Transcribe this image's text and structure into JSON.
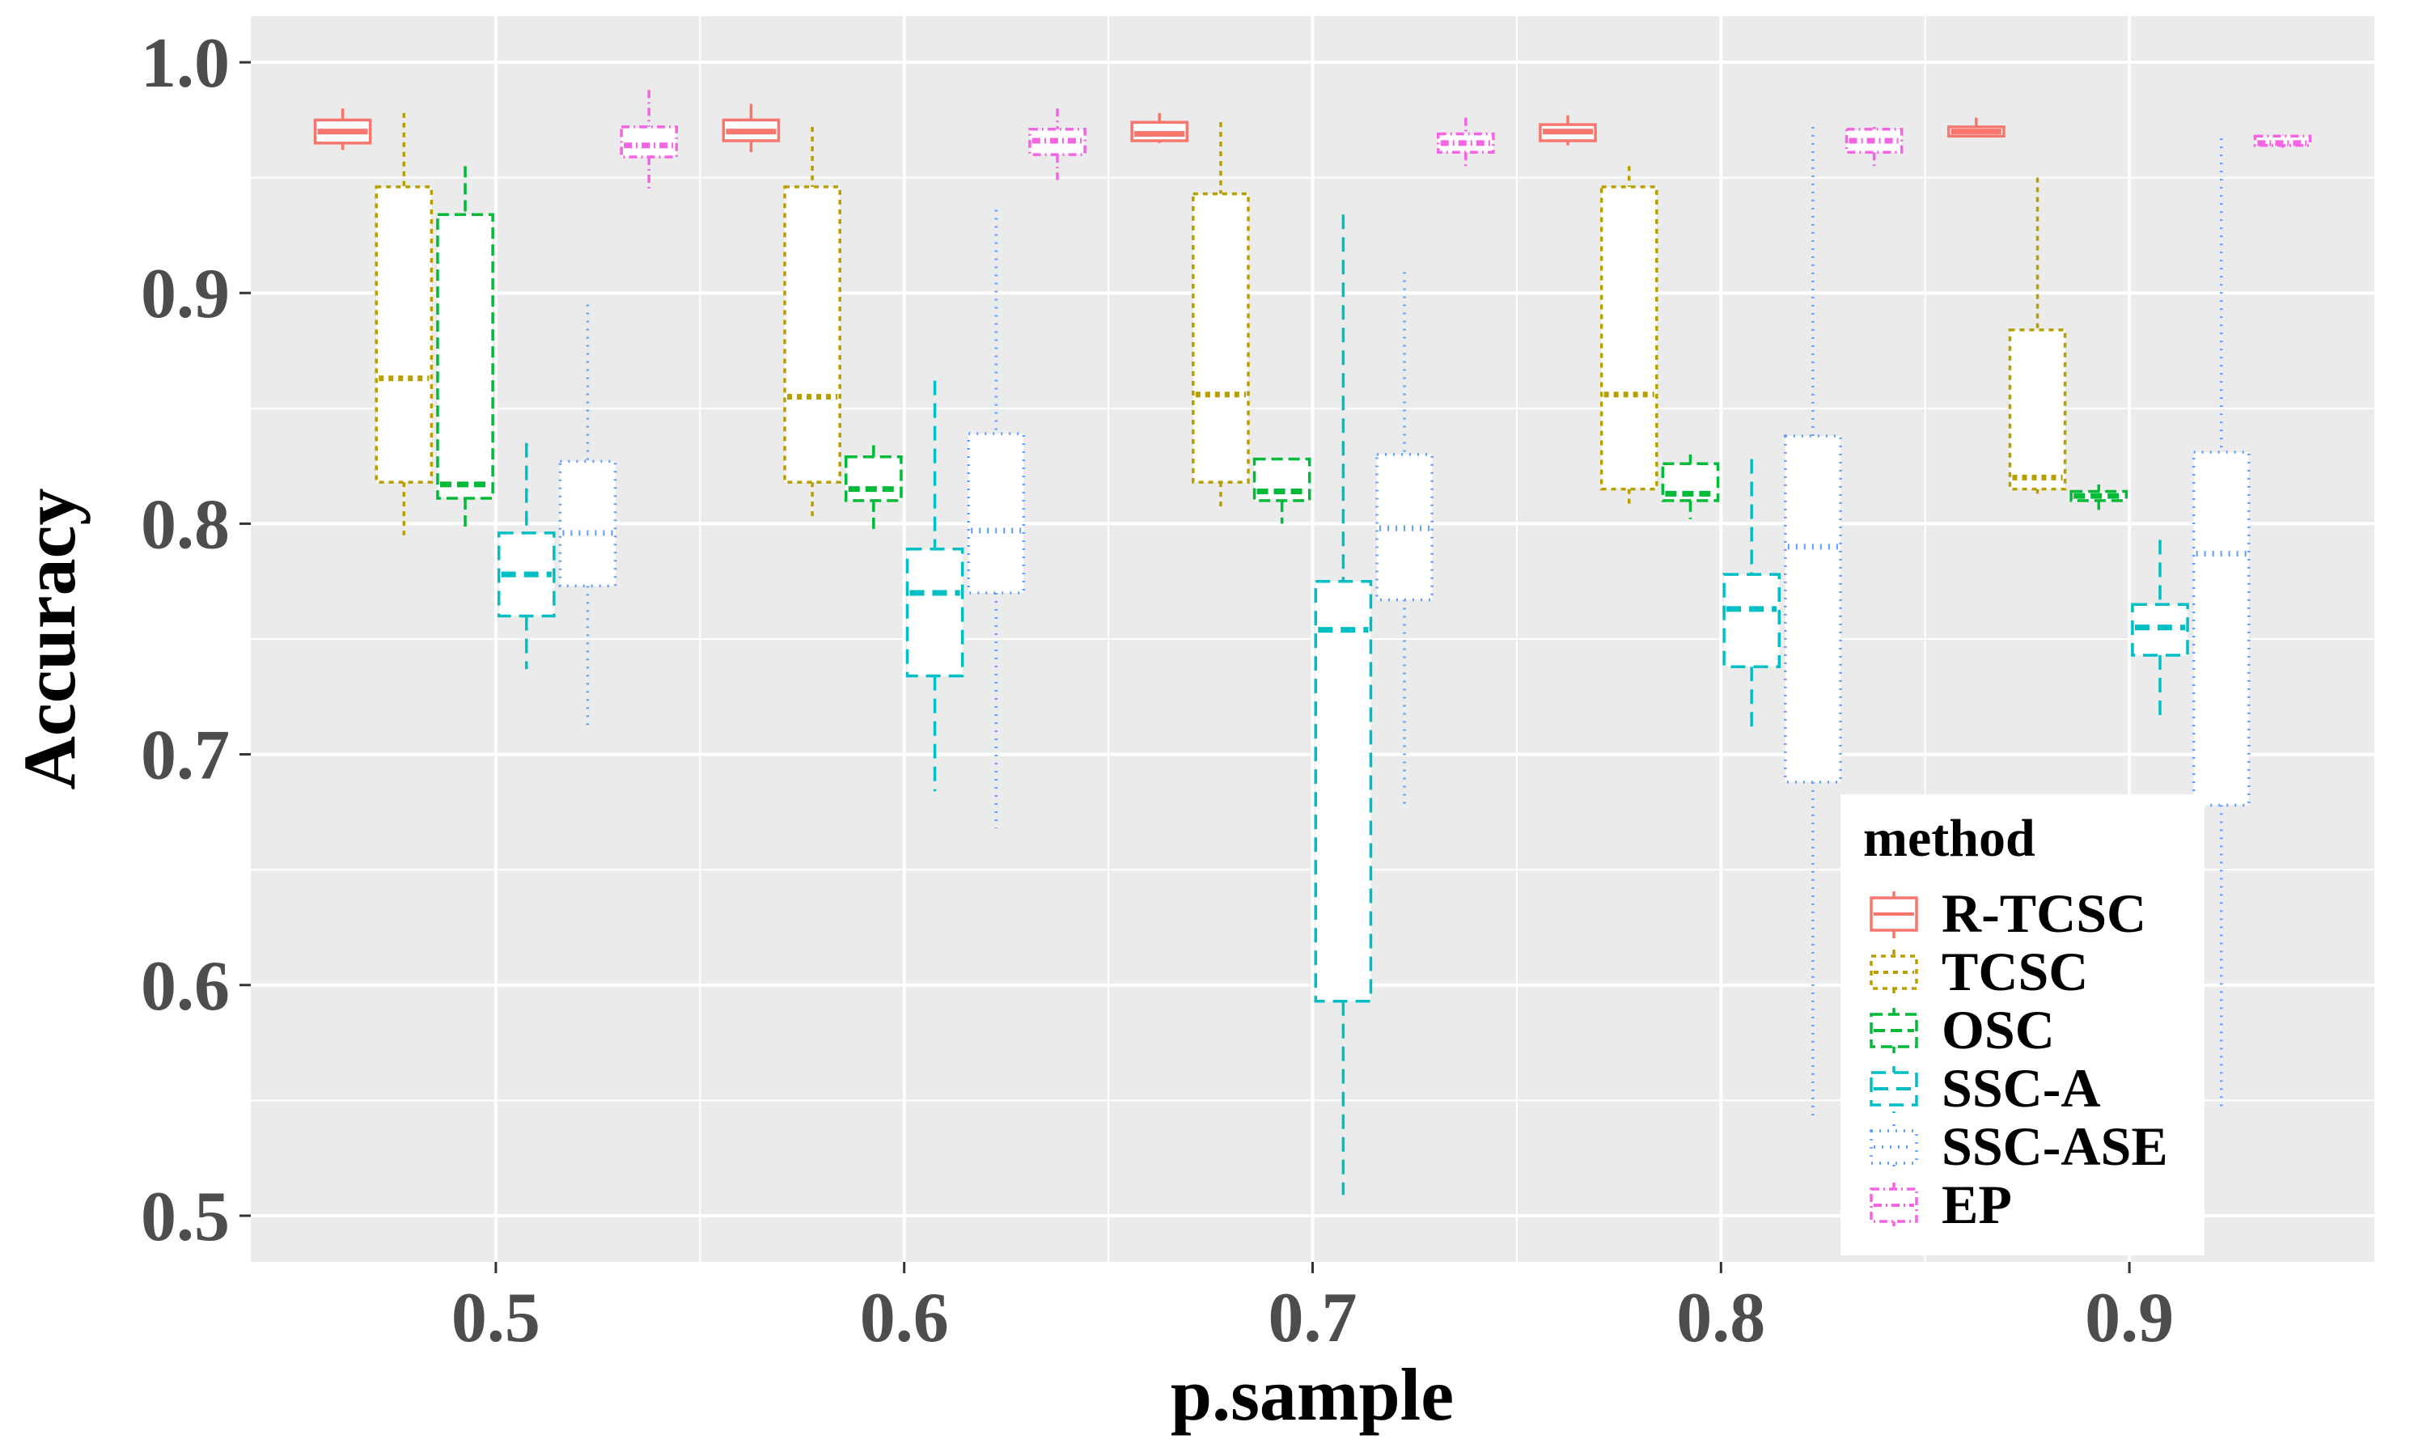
{
  "chart_data": {
    "type": "boxplot",
    "xlabel": "p.sample",
    "ylabel": "Accuracy",
    "ylim": [
      0.48,
      1.02
    ],
    "y_ticks": [
      "0.5",
      "0.6",
      "0.7",
      "0.8",
      "0.9",
      "1.0"
    ],
    "categories": [
      "0.5",
      "0.6",
      "0.7",
      "0.8",
      "0.9"
    ],
    "legend": {
      "title": "method",
      "placement": "bottom-right"
    },
    "series": [
      {
        "name": "R-TCSC",
        "color": "#f8766d",
        "dash": "solid",
        "linetype": "solid",
        "boxes": [
          {
            "lo": 0.962,
            "q1": 0.965,
            "med": 0.97,
            "q3": 0.975,
            "hi": 0.98
          },
          {
            "lo": 0.961,
            "q1": 0.966,
            "med": 0.97,
            "q3": 0.975,
            "hi": 0.982
          },
          {
            "lo": 0.965,
            "q1": 0.966,
            "med": 0.969,
            "q3": 0.974,
            "hi": 0.978
          },
          {
            "lo": 0.964,
            "q1": 0.966,
            "med": 0.97,
            "q3": 0.973,
            "hi": 0.977
          },
          {
            "lo": 0.968,
            "q1": 0.968,
            "med": 0.97,
            "q3": 0.972,
            "hi": 0.976
          }
        ]
      },
      {
        "name": "TCSC",
        "color": "#b79f00",
        "dash": "6,6",
        "linetype": "dashed",
        "boxes": [
          {
            "lo": 0.795,
            "q1": 0.818,
            "med": 0.863,
            "q3": 0.946,
            "hi": 0.978
          },
          {
            "lo": 0.803,
            "q1": 0.818,
            "med": 0.855,
            "q3": 0.946,
            "hi": 0.972
          },
          {
            "lo": 0.806,
            "q1": 0.818,
            "med": 0.856,
            "q3": 0.943,
            "hi": 0.974
          },
          {
            "lo": 0.807,
            "q1": 0.815,
            "med": 0.856,
            "q3": 0.946,
            "hi": 0.955
          },
          {
            "lo": 0.813,
            "q1": 0.815,
            "med": 0.82,
            "q3": 0.884,
            "hi": 0.95
          }
        ]
      },
      {
        "name": "OSC",
        "color": "#00ba38",
        "dash": "14,7",
        "linetype": "longdash",
        "boxes": [
          {
            "lo": 0.798,
            "q1": 0.811,
            "med": 0.817,
            "q3": 0.934,
            "hi": 0.955
          },
          {
            "lo": 0.797,
            "q1": 0.81,
            "med": 0.815,
            "q3": 0.829,
            "hi": 0.834
          },
          {
            "lo": 0.8,
            "q1": 0.81,
            "med": 0.814,
            "q3": 0.828,
            "hi": 0.828
          },
          {
            "lo": 0.802,
            "q1": 0.81,
            "med": 0.813,
            "q3": 0.826,
            "hi": 0.83
          },
          {
            "lo": 0.806,
            "q1": 0.81,
            "med": 0.812,
            "q3": 0.814,
            "hi": 0.817
          }
        ]
      },
      {
        "name": "SSC-A",
        "color": "#00bfc4",
        "dash": "18,10",
        "linetype": "twodash",
        "boxes": [
          {
            "lo": 0.737,
            "q1": 0.76,
            "med": 0.778,
            "q3": 0.796,
            "hi": 0.835
          },
          {
            "lo": 0.684,
            "q1": 0.734,
            "med": 0.77,
            "q3": 0.789,
            "hi": 0.862
          },
          {
            "lo": 0.509,
            "q1": 0.593,
            "med": 0.754,
            "q3": 0.775,
            "hi": 0.934
          },
          {
            "lo": 0.711,
            "q1": 0.738,
            "med": 0.763,
            "q3": 0.778,
            "hi": 0.828
          },
          {
            "lo": 0.714,
            "q1": 0.743,
            "med": 0.755,
            "q3": 0.765,
            "hi": 0.793
          }
        ]
      },
      {
        "name": "SSC-ASE",
        "color": "#619cff",
        "dash": "2,8",
        "linetype": "dotted",
        "boxes": [
          {
            "lo": 0.71,
            "q1": 0.773,
            "med": 0.796,
            "q3": 0.827,
            "hi": 0.895
          },
          {
            "lo": 0.668,
            "q1": 0.77,
            "med": 0.797,
            "q3": 0.839,
            "hi": 0.936
          },
          {
            "lo": 0.676,
            "q1": 0.767,
            "med": 0.798,
            "q3": 0.83,
            "hi": 0.909
          },
          {
            "lo": 0.541,
            "q1": 0.688,
            "med": 0.79,
            "q3": 0.838,
            "hi": 0.972
          },
          {
            "lo": 0.547,
            "q1": 0.678,
            "med": 0.787,
            "q3": 0.831,
            "hi": 0.967
          }
        ]
      },
      {
        "name": "EP",
        "color": "#f564e3",
        "dash": "10,5,2,5",
        "linetype": "dotdash",
        "boxes": [
          {
            "lo": 0.944,
            "q1": 0.959,
            "med": 0.964,
            "q3": 0.972,
            "hi": 0.988
          },
          {
            "lo": 0.949,
            "q1": 0.96,
            "med": 0.966,
            "q3": 0.971,
            "hi": 0.98
          },
          {
            "lo": 0.955,
            "q1": 0.961,
            "med": 0.965,
            "q3": 0.969,
            "hi": 0.976
          },
          {
            "lo": 0.955,
            "q1": 0.961,
            "med": 0.966,
            "q3": 0.971,
            "hi": 0.972
          },
          {
            "lo": 0.963,
            "q1": 0.964,
            "med": 0.965,
            "q3": 0.968,
            "hi": 0.968
          }
        ]
      }
    ]
  }
}
